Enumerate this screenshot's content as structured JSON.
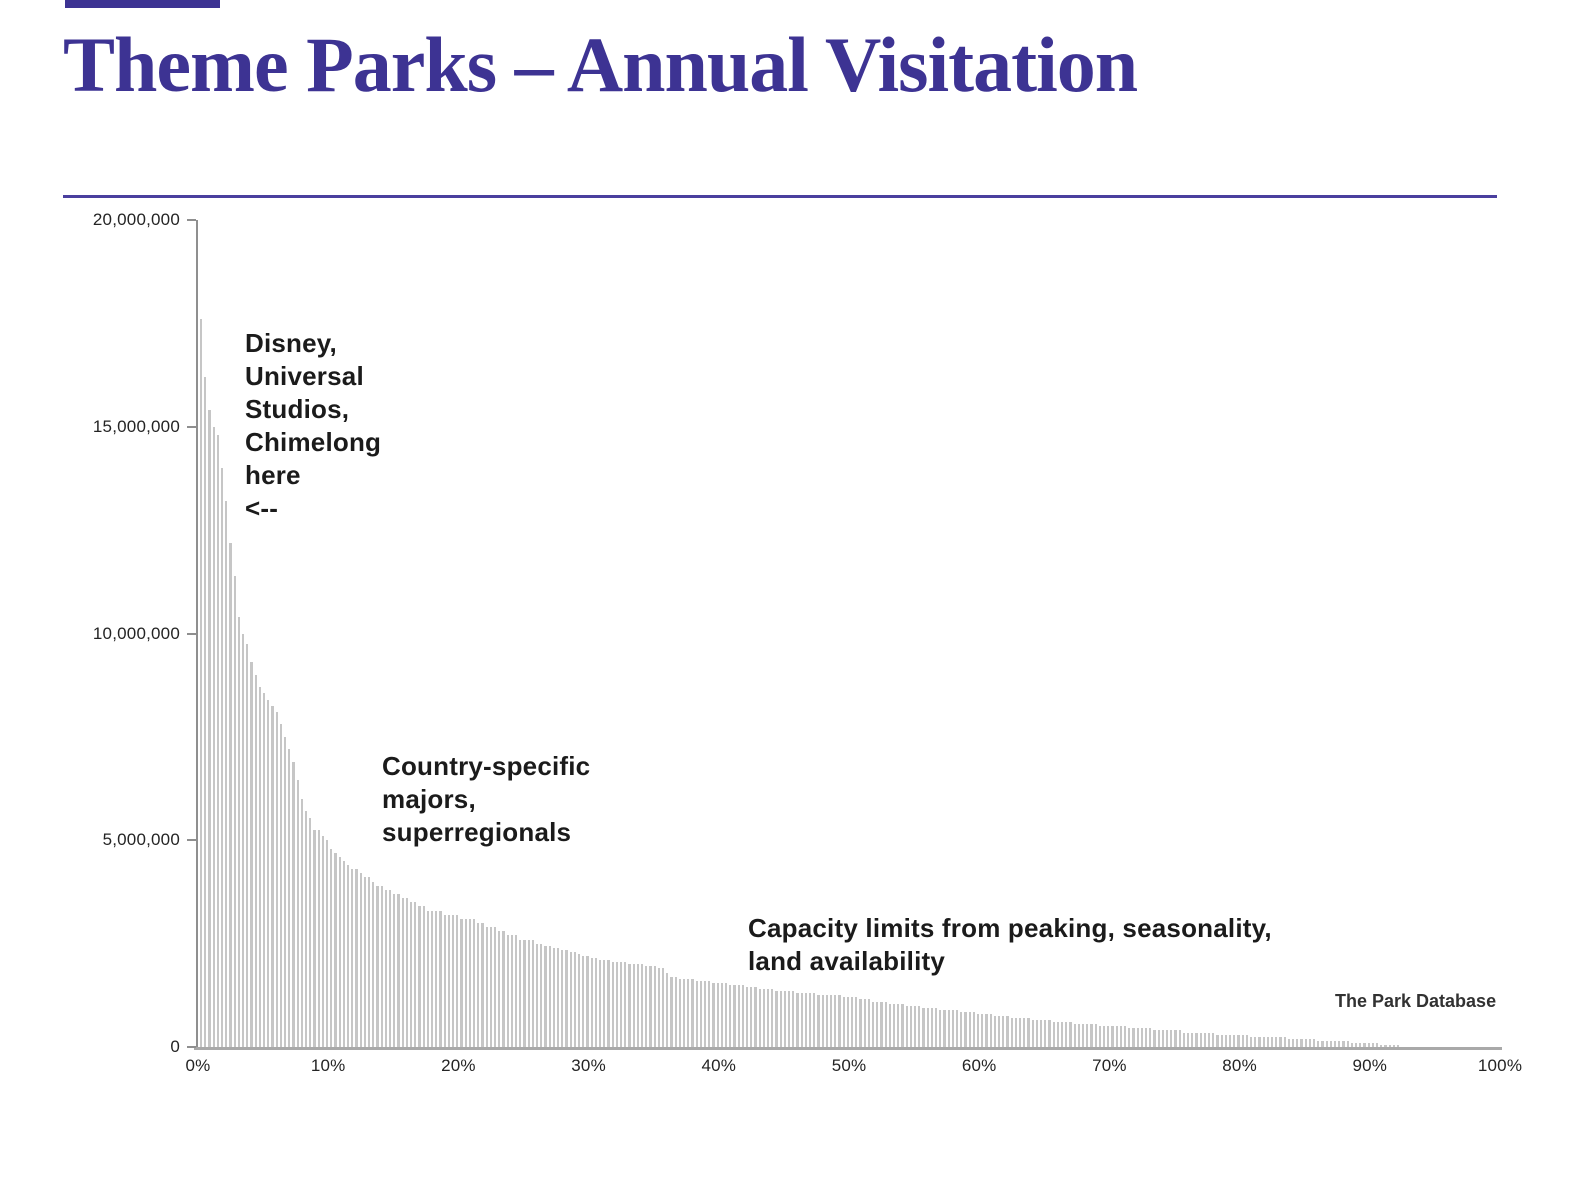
{
  "header": {
    "title": "Theme Parks – Annual Visitation"
  },
  "colors": {
    "accent_purple": "#3d3393",
    "rule_purple": "#4a3f9e",
    "bar_gray": "#c6c6c6",
    "axis_gray": "#8f8f8f",
    "baseline_gray": "#a9a9a9",
    "annotation_text": "#1b1b1b"
  },
  "chart_data": {
    "type": "bar",
    "title": "Theme Parks – Annual Visitation",
    "description": "Distribution of annual visitation across theme parks, ranked from most to least visited, x axis = percentile of parks",
    "x_axis": {
      "range_pct": [
        0,
        100
      ],
      "ticks": [
        "0%",
        "10%",
        "20%",
        "30%",
        "40%",
        "50%",
        "60%",
        "70%",
        "80%",
        "90%",
        "100%"
      ]
    },
    "y_axis": {
      "range_visitors": [
        0,
        20000000
      ],
      "ticks_top_to_bottom": [
        "20,000,000",
        "15,000,000",
        "10,000,000",
        "5,000,000",
        "0"
      ]
    },
    "grid": "off",
    "legend": "none",
    "n_bars": 310,
    "profile_points_pct_vs_visitors_millions": [
      [
        0.0,
        17.6
      ],
      [
        0.32,
        16.2
      ],
      [
        0.65,
        15.35
      ],
      [
        0.97,
        15.05
      ],
      [
        1.29,
        14.75
      ],
      [
        1.61,
        14.0
      ],
      [
        1.94,
        13.1
      ],
      [
        2.26,
        12.25
      ],
      [
        2.58,
        11.4
      ],
      [
        2.9,
        10.45
      ],
      [
        3.23,
        10.05
      ],
      [
        3.55,
        9.7
      ],
      [
        3.87,
        9.35
      ],
      [
        4.19,
        9.05
      ],
      [
        4.52,
        8.75
      ],
      [
        5.5,
        8.3
      ],
      [
        6.5,
        7.5
      ],
      [
        7.1,
        6.9
      ],
      [
        7.7,
        6.1
      ],
      [
        8.2,
        5.6
      ],
      [
        8.7,
        5.3
      ],
      [
        9.7,
        4.95
      ],
      [
        10.8,
        4.55
      ],
      [
        12.2,
        4.2
      ],
      [
        13.8,
        3.9
      ],
      [
        15.3,
        3.65
      ],
      [
        17.3,
        3.35
      ],
      [
        19.2,
        3.2
      ],
      [
        21.0,
        3.05
      ],
      [
        23.0,
        2.8
      ],
      [
        24.5,
        2.65
      ],
      [
        26.0,
        2.5
      ],
      [
        28.0,
        2.35
      ],
      [
        30.0,
        2.15
      ],
      [
        32.0,
        2.05
      ],
      [
        34.0,
        1.97
      ],
      [
        35.5,
        1.9
      ],
      [
        36.2,
        1.7
      ],
      [
        38.0,
        1.62
      ],
      [
        40.0,
        1.55
      ],
      [
        42.0,
        1.46
      ],
      [
        44.0,
        1.38
      ],
      [
        46.0,
        1.31
      ],
      [
        48.0,
        1.26
      ],
      [
        50.0,
        1.2
      ],
      [
        52.0,
        1.1
      ],
      [
        54.0,
        1.02
      ],
      [
        56.0,
        0.95
      ],
      [
        58.0,
        0.88
      ],
      [
        60.0,
        0.8
      ],
      [
        62.0,
        0.73
      ],
      [
        64.0,
        0.66
      ],
      [
        66.0,
        0.6
      ],
      [
        68.0,
        0.55
      ],
      [
        70.0,
        0.5
      ],
      [
        72.0,
        0.45
      ],
      [
        74.0,
        0.4
      ],
      [
        76.0,
        0.36
      ],
      [
        78.0,
        0.32
      ],
      [
        80.0,
        0.28
      ],
      [
        82.0,
        0.25
      ],
      [
        84.0,
        0.21
      ],
      [
        86.0,
        0.17
      ],
      [
        88.0,
        0.13
      ],
      [
        90.0,
        0.09
      ],
      [
        91.5,
        0.05
      ],
      [
        92.3,
        0.02
      ],
      [
        93.0,
        0.0
      ],
      [
        100.0,
        0.0
      ]
    ],
    "annotations": [
      {
        "id": "top-parks",
        "text": "Disney,\nUniversal\nStudios,\nChimelong\nhere\n<--"
      },
      {
        "id": "mid-parks",
        "text": "Country-specific\nmajors,\nsuperregionals"
      },
      {
        "id": "capacity",
        "text": "Capacity limits from peaking, seasonality,\nland availability"
      }
    ],
    "source": "The Park Database"
  }
}
